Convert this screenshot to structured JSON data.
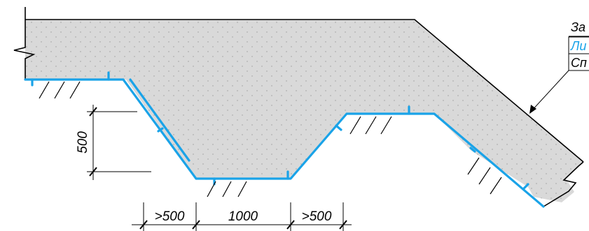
{
  "colors": {
    "background": "#ffffff",
    "concrete_fill": "#d9d9d9",
    "concrete_dots": "#9a9a9a",
    "outline": "#000000",
    "waterproofing": "#1aa3e8",
    "callout_blue_text": "#1aa3e8"
  },
  "dimensions": {
    "height_label": "500",
    "left_width_label": ">500",
    "bottom_width_label": "1000",
    "right_width_label": ">500"
  },
  "callout": {
    "line1": "За",
    "line2": "Ли",
    "line3": "Сп"
  }
}
